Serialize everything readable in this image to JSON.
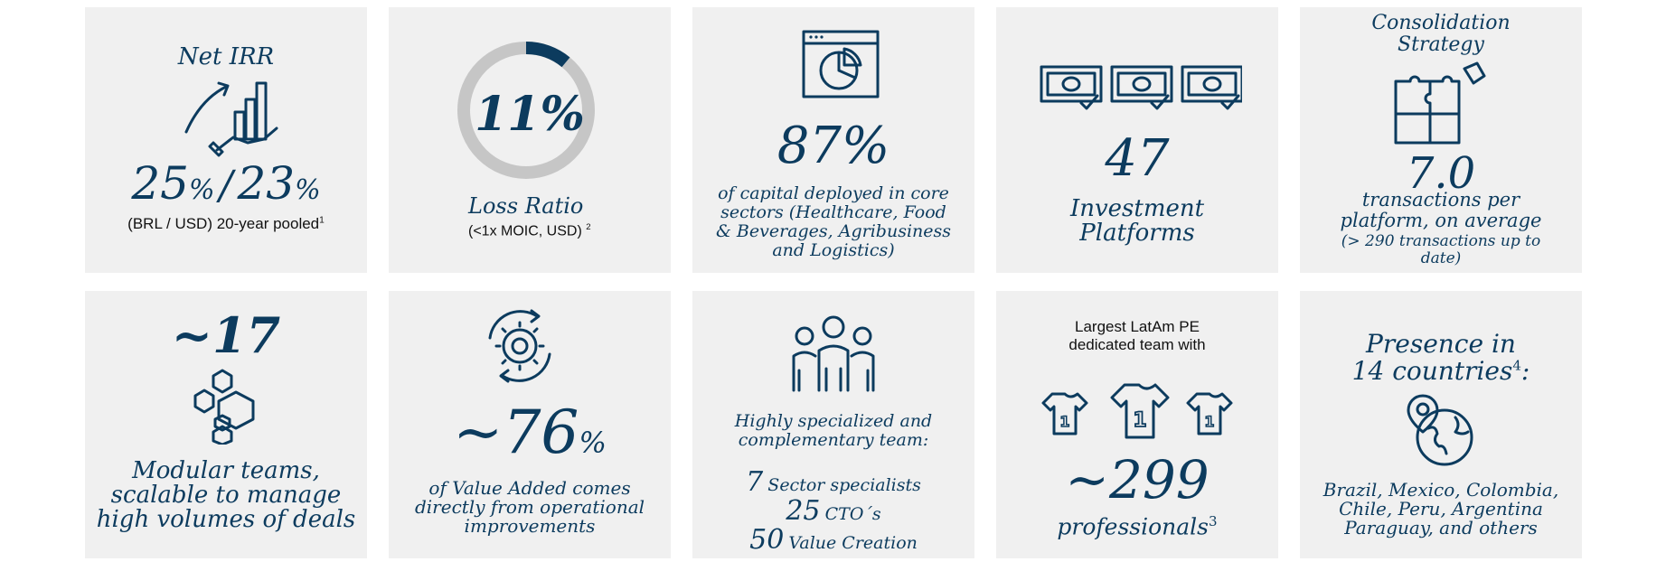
{
  "colors": {
    "accent": "#0c3b5e",
    "card_bg": "#f0f0f0",
    "ring_gray": "#c6c6c6"
  },
  "cards": [
    {
      "title": "Net IRR",
      "value_a": "25",
      "pct_a": "%",
      "slash": "/",
      "value_b": "23",
      "pct_b": "%",
      "caption": "(BRL / USD) 20-year pooled",
      "footnote": "1",
      "icon": "growth-chart-hand-icon"
    },
    {
      "value": "11%",
      "label": "Loss Ratio",
      "caption": "(<1x MOIC, USD)",
      "footnote": "2",
      "ring_fraction": 0.11,
      "icon": "donut-ring-icon"
    },
    {
      "value": "87%",
      "caption_lines": [
        "of capital deployed in core",
        "sectors (Healthcare, Food",
        "& Beverages, Agribusiness",
        "and Logistics)"
      ],
      "icon": "pie-chart-window-icon"
    },
    {
      "value": "47",
      "label_lines": [
        "Investment",
        "Platforms"
      ],
      "icon": "money-check-icon"
    },
    {
      "title_lines": [
        "Consolidation",
        "Strategy"
      ],
      "value": "7.0",
      "caption_lines": [
        "transactions per",
        "platform, on average"
      ],
      "sub_lines": [
        "(> 290 transactions up to",
        "date)"
      ],
      "icon": "puzzle-icon"
    },
    {
      "value": "~17",
      "caption_lines": [
        "Modular teams,",
        "scalable to manage",
        "high volumes of deals"
      ],
      "icon": "hexagons-icon"
    },
    {
      "value": "~76",
      "pct": "%",
      "caption_lines": [
        "of Value Added comes",
        "directly from operational",
        "improvements"
      ],
      "icon": "gear-cycle-icon"
    },
    {
      "caption_lines": [
        "Highly specialized and",
        "complementary  team:"
      ],
      "stats": [
        {
          "num": "7",
          "text": "Sector specialists"
        },
        {
          "num": "25",
          "text": "CTO´s"
        },
        {
          "num": "50",
          "text": "Value Creation"
        }
      ],
      "icon": "team-people-icon"
    },
    {
      "header_lines": [
        "Largest LatAm PE",
        "dedicated team with"
      ],
      "value": "~299",
      "label": "professionals",
      "footnote": "3",
      "jersey": "1",
      "icon": "jersey-icon"
    },
    {
      "title_line1": "Presence in",
      "title_line2": "14 countries",
      "footnote": "4",
      "title_suffix": ":",
      "caption_lines": [
        "Brazil, Mexico, Colombia,",
        "Chile, Peru, Argentina",
        "Paraguay, and others"
      ],
      "icon": "globe-pin-icon"
    }
  ]
}
